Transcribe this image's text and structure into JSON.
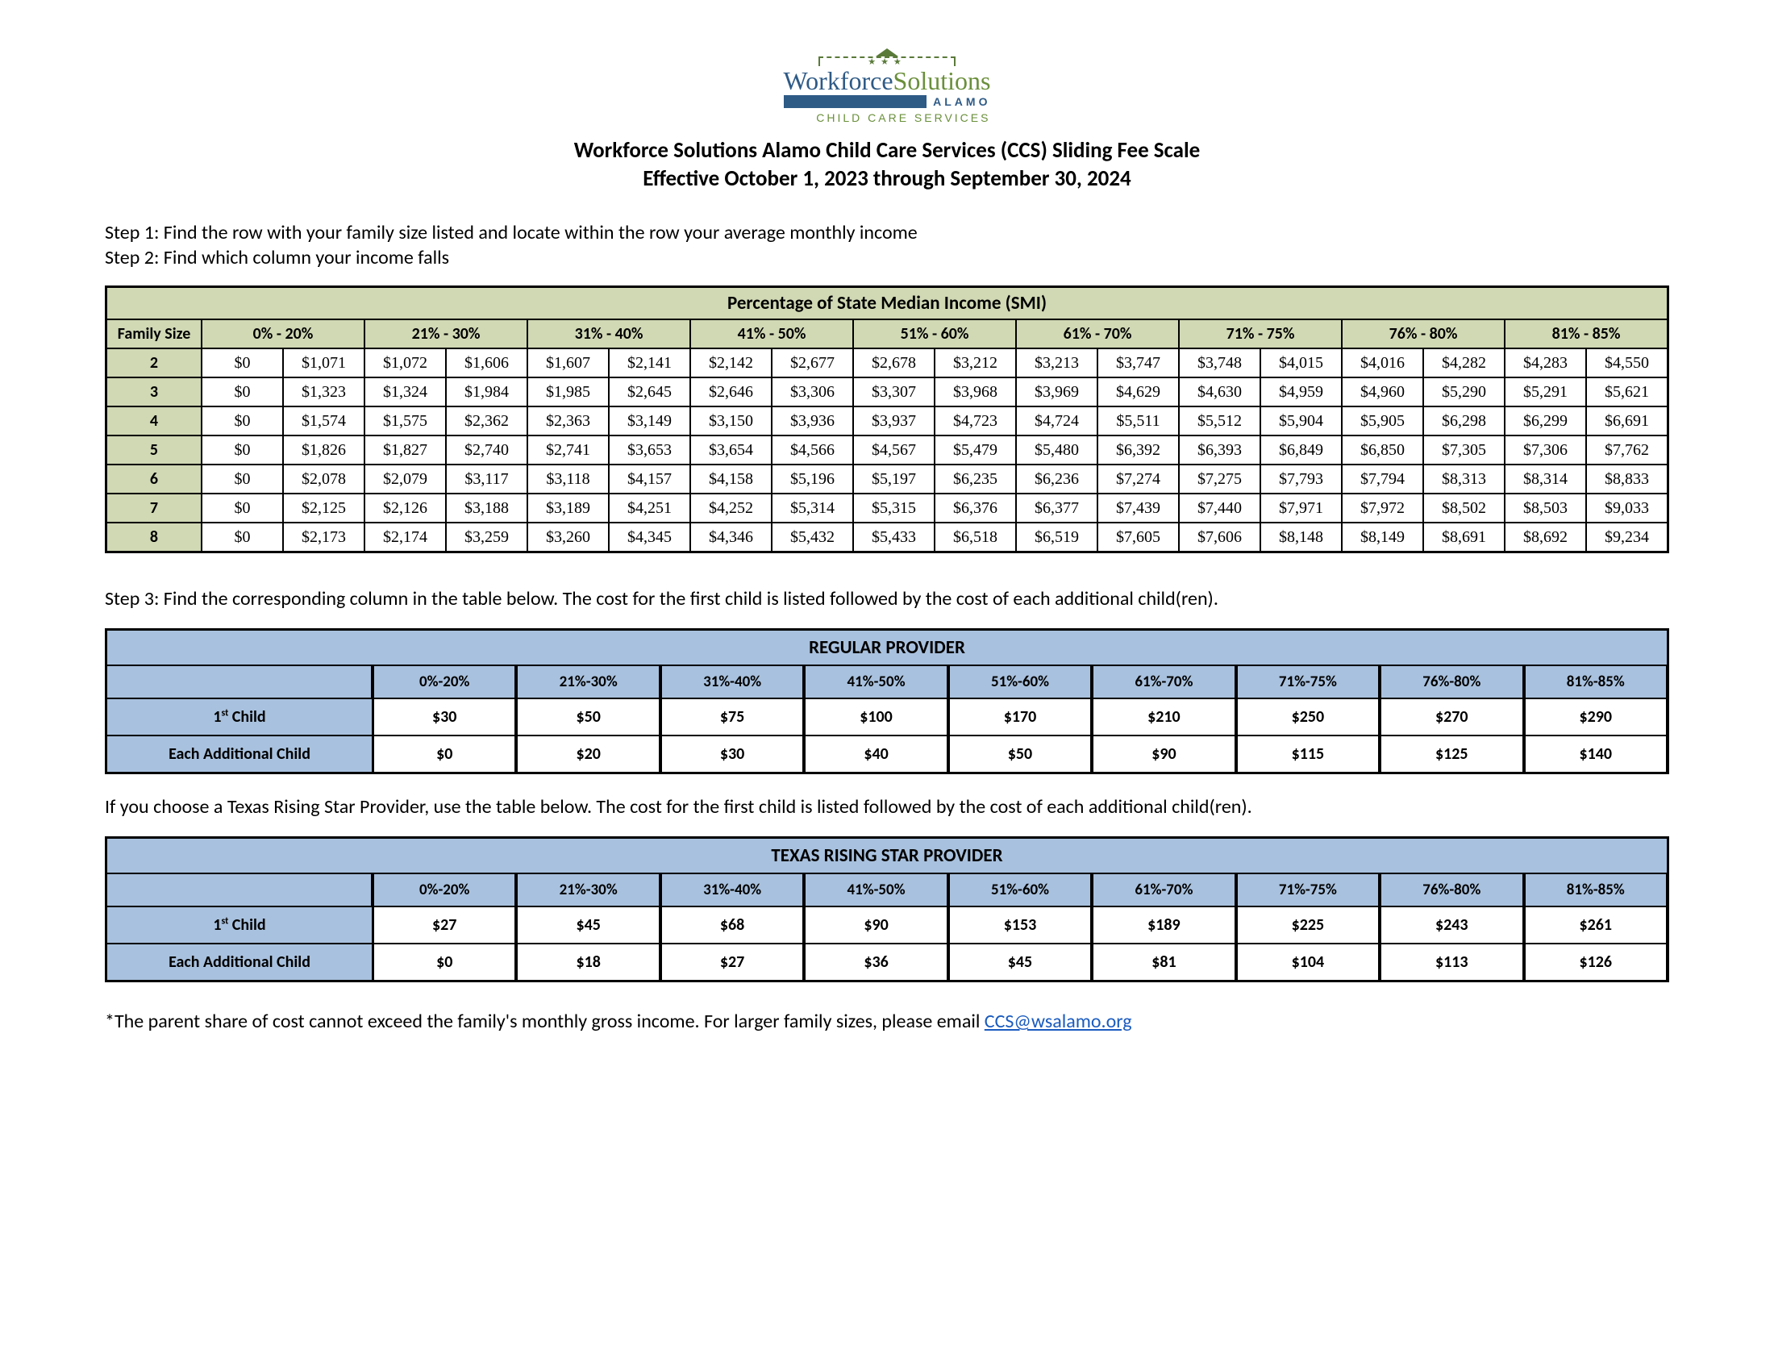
{
  "logo": {
    "workforce": "Workforce",
    "solutions": "Solutions",
    "alamo": "ALAMO",
    "sub": "CHILD CARE SERVICES"
  },
  "title": "Workforce Solutions Alamo Child Care Services (CCS) Sliding Fee Scale",
  "subtitle": "Effective October 1, 2023 through September 30, 2024",
  "steps": {
    "s1": "Step 1: Find the row with your family size listed and locate within the row your average monthly income",
    "s2": "Step 2: Find which column your income falls",
    "s3": "Step 3: Find the corresponding column in the table below.  The cost for the first child is listed followed by the cost of each additional child(ren)."
  },
  "smi": {
    "title": "Percentage of State Median Income (SMI)",
    "family_size_label": "Family Size",
    "brackets": [
      "0% - 20%",
      "21% - 30%",
      "31% - 40%",
      "41% - 50%",
      "51% - 60%",
      "61% - 70%",
      "71% - 75%",
      "76% - 80%",
      "81% - 85%"
    ],
    "rows": [
      {
        "size": "2",
        "vals": [
          "$0",
          "$1,071",
          "$1,072",
          "$1,606",
          "$1,607",
          "$2,141",
          "$2,142",
          "$2,677",
          "$2,678",
          "$3,212",
          "$3,213",
          "$3,747",
          "$3,748",
          "$4,015",
          "$4,016",
          "$4,282",
          "$4,283",
          "$4,550"
        ]
      },
      {
        "size": "3",
        "vals": [
          "$0",
          "$1,323",
          "$1,324",
          "$1,984",
          "$1,985",
          "$2,645",
          "$2,646",
          "$3,306",
          "$3,307",
          "$3,968",
          "$3,969",
          "$4,629",
          "$4,630",
          "$4,959",
          "$4,960",
          "$5,290",
          "$5,291",
          "$5,621"
        ]
      },
      {
        "size": "4",
        "vals": [
          "$0",
          "$1,574",
          "$1,575",
          "$2,362",
          "$2,363",
          "$3,149",
          "$3,150",
          "$3,936",
          "$3,937",
          "$4,723",
          "$4,724",
          "$5,511",
          "$5,512",
          "$5,904",
          "$5,905",
          "$6,298",
          "$6,299",
          "$6,691"
        ]
      },
      {
        "size": "5",
        "vals": [
          "$0",
          "$1,826",
          "$1,827",
          "$2,740",
          "$2,741",
          "$3,653",
          "$3,654",
          "$4,566",
          "$4,567",
          "$5,479",
          "$5,480",
          "$6,392",
          "$6,393",
          "$6,849",
          "$6,850",
          "$7,305",
          "$7,306",
          "$7,762"
        ]
      },
      {
        "size": "6",
        "vals": [
          "$0",
          "$2,078",
          "$2,079",
          "$3,117",
          "$3,118",
          "$4,157",
          "$4,158",
          "$5,196",
          "$5,197",
          "$6,235",
          "$6,236",
          "$7,274",
          "$7,275",
          "$7,793",
          "$7,794",
          "$8,313",
          "$8,314",
          "$8,833"
        ]
      },
      {
        "size": "7",
        "vals": [
          "$0",
          "$2,125",
          "$2,126",
          "$3,188",
          "$3,189",
          "$4,251",
          "$4,252",
          "$5,314",
          "$5,315",
          "$6,376",
          "$6,377",
          "$7,439",
          "$7,440",
          "$7,971",
          "$7,972",
          "$8,502",
          "$8,503",
          "$9,033"
        ]
      },
      {
        "size": "8",
        "vals": [
          "$0",
          "$2,173",
          "$2,174",
          "$3,259",
          "$3,260",
          "$4,345",
          "$4,346",
          "$5,432",
          "$5,433",
          "$6,518",
          "$6,519",
          "$7,605",
          "$7,606",
          "$8,148",
          "$8,149",
          "$8,691",
          "$8,692",
          "$9,234"
        ]
      }
    ],
    "header_bg": "#d0d8b4",
    "border": "#000000"
  },
  "provider_brackets": [
    "0%-20%",
    "21%-30%",
    "31%-40%",
    "41%-50%",
    "51%-60%",
    "61%-70%",
    "71%-75%",
    "76%-80%",
    "81%-85%"
  ],
  "regular": {
    "title": "REGULAR PROVIDER",
    "row1_label": "1st Child",
    "row1": [
      "$30",
      "$50",
      "$75",
      "$100",
      "$170",
      "$210",
      "$250",
      "$270",
      "$290"
    ],
    "row2_label": "Each Additional Child",
    "row2": [
      "$0",
      "$20",
      "$30",
      "$40",
      "$50",
      "$90",
      "$115",
      "$125",
      "$140"
    ]
  },
  "rising_intro": "If you choose a Texas Rising Star Provider, use the table below.  The cost for the first child is listed followed by the cost of each additional child(ren).",
  "rising": {
    "title": "TEXAS RISING STAR PROVIDER",
    "row1_label": "1st Child",
    "row1": [
      "$27",
      "$45",
      "$68",
      "$90",
      "$153",
      "$189",
      "$225",
      "$243",
      "$261"
    ],
    "row2_label": "Each Additional Child",
    "row2": [
      "$0",
      "$18",
      "$27",
      "$36",
      "$45",
      "$81",
      "$104",
      "$113",
      "$126"
    ]
  },
  "footnote": {
    "text": "*The parent share of cost cannot exceed the family's monthly gross income.  For larger family sizes, please email ",
    "email": "CCS@wsalamo.org"
  },
  "colors": {
    "smi_header": "#d0d8b4",
    "prov_header": "#a8c1de",
    "link": "#1a5bbf",
    "logo_blue": "#2e5a86",
    "logo_green": "#6a8f3b"
  }
}
